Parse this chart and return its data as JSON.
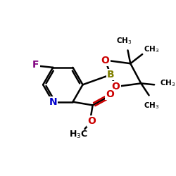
{
  "bg_color": "#ffffff",
  "atom_colors": {
    "C": "#000000",
    "N": "#0000cc",
    "O": "#cc0000",
    "F": "#800080",
    "B": "#808000"
  },
  "bond_color": "#000000",
  "bond_width": 1.8
}
